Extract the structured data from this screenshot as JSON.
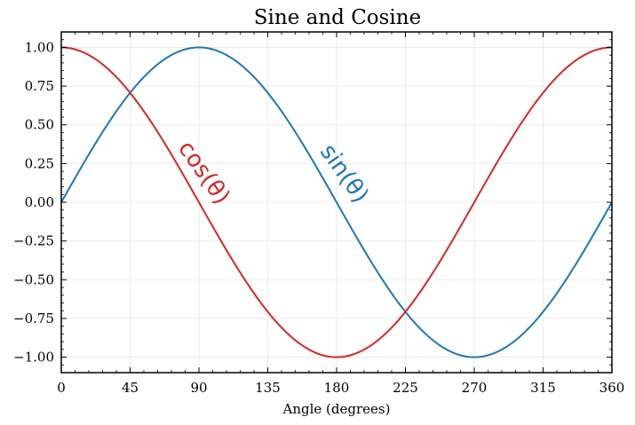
{
  "chart_data": {
    "type": "line",
    "title": "Sine and Cosine",
    "xlabel": "Angle (degrees)",
    "ylabel": "",
    "xlim": [
      0,
      360
    ],
    "ylim": [
      -1.1,
      1.1
    ],
    "x_ticks": [
      "0",
      "45",
      "90",
      "135",
      "180",
      "225",
      "270",
      "315",
      "360"
    ],
    "y_ticks": [
      "1.00",
      "0.75",
      "0.50",
      "0.25",
      "0.00",
      "−0.25",
      "−0.50",
      "−0.75",
      "−1.00"
    ],
    "grid": true,
    "series": [
      {
        "name": "sin(θ)",
        "function": "sin",
        "color": "#1f77b4"
      },
      {
        "name": "cos(θ)",
        "function": "cos",
        "color": "#d62728"
      }
    ]
  }
}
